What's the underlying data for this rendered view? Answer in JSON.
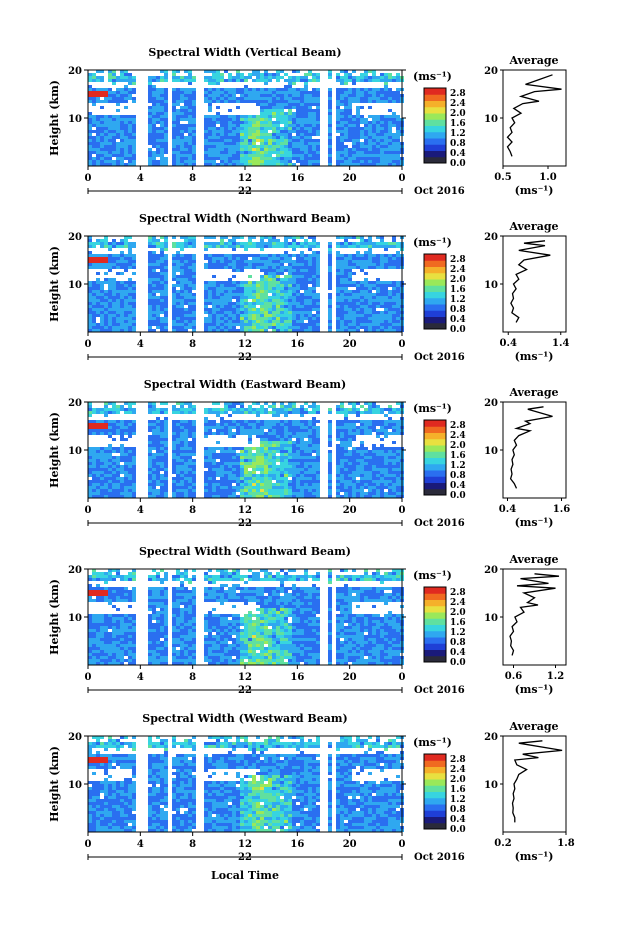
{
  "chart_data": [
    {
      "type": "heatmap",
      "title": "Spectral Width (Vertical Beam)",
      "ylabel": "Height (km)",
      "x_ticks": [
        "0",
        "4",
        "8",
        "12",
        "16",
        "20",
        "0"
      ],
      "ylim": [
        0,
        20
      ],
      "y_ticks": [
        "20",
        "10"
      ],
      "date_label": "22",
      "date_suffix": "Oct 2016",
      "colorbar": {
        "unit": "(ms⁻¹)",
        "ticks": [
          "2.8",
          "2.4",
          "2.0",
          "1.6",
          "1.2",
          "0.8",
          "0.4",
          "0.0"
        ]
      },
      "average": {
        "title": "Average",
        "xlabel": "(ms⁻¹)",
        "x_ticks": [
          "0.5",
          "1.0"
        ],
        "xlim": [
          0.5,
          1.2
        ],
        "y_ticks": [
          "20",
          "10"
        ]
      }
    },
    {
      "type": "heatmap",
      "title": "Spectral Width (Northward Beam)",
      "ylabel": "Height (km)",
      "x_ticks": [
        "0",
        "4",
        "8",
        "12",
        "16",
        "20",
        "0"
      ],
      "ylim": [
        0,
        20
      ],
      "y_ticks": [
        "20",
        "10"
      ],
      "date_label": "22",
      "date_suffix": "Oct 2016",
      "colorbar": {
        "unit": "(ms⁻¹)",
        "ticks": [
          "2.8",
          "2.4",
          "2.0",
          "1.6",
          "1.2",
          "0.8",
          "0.4",
          "0.0"
        ]
      },
      "average": {
        "title": "Average",
        "xlabel": "(ms⁻¹)",
        "x_ticks": [
          "0.4",
          "1.4"
        ],
        "xlim": [
          0.3,
          1.5
        ],
        "y_ticks": [
          "20",
          "10"
        ]
      }
    },
    {
      "type": "heatmap",
      "title": "Spectral Width (Eastward Beam)",
      "ylabel": "Height (km)",
      "x_ticks": [
        "0",
        "4",
        "8",
        "12",
        "16",
        "20",
        "0"
      ],
      "ylim": [
        0,
        20
      ],
      "y_ticks": [
        "20",
        "10"
      ],
      "date_label": "22",
      "date_suffix": "Oct 2016",
      "colorbar": {
        "unit": "(ms⁻¹)",
        "ticks": [
          "2.8",
          "2.4",
          "2.0",
          "1.6",
          "1.2",
          "0.8",
          "0.4",
          "0.0"
        ]
      },
      "average": {
        "title": "Average",
        "xlabel": "(ms⁻¹)",
        "x_ticks": [
          "0.4",
          "1.6"
        ],
        "xlim": [
          0.3,
          1.7
        ],
        "y_ticks": [
          "20",
          "10"
        ]
      }
    },
    {
      "type": "heatmap",
      "title": "Spectral Width (Southward Beam)",
      "ylabel": "Height (km)",
      "x_ticks": [
        "0",
        "4",
        "8",
        "12",
        "16",
        "20",
        "0"
      ],
      "ylim": [
        0,
        20
      ],
      "y_ticks": [
        "20",
        "10"
      ],
      "date_label": "22",
      "date_suffix": "Oct 2016",
      "colorbar": {
        "unit": "(ms⁻¹)",
        "ticks": [
          "2.8",
          "2.4",
          "2.0",
          "1.6",
          "1.2",
          "0.8",
          "0.4",
          "0.0"
        ]
      },
      "average": {
        "title": "Average",
        "xlabel": "(ms⁻¹)",
        "x_ticks": [
          "0.6",
          "1.2"
        ],
        "xlim": [
          0.45,
          1.35
        ],
        "y_ticks": [
          "20",
          "10"
        ]
      }
    },
    {
      "type": "heatmap",
      "title": "Spectral Width (Westward Beam)",
      "ylabel": "Height (km)",
      "x_ticks": [
        "0",
        "4",
        "8",
        "12",
        "16",
        "20",
        "0"
      ],
      "ylim": [
        0,
        20
      ],
      "y_ticks": [
        "20",
        "10"
      ],
      "date_label": "22",
      "date_suffix": "Oct 2016",
      "colorbar": {
        "unit": "(ms⁻¹)",
        "ticks": [
          "2.8",
          "2.4",
          "2.0",
          "1.6",
          "1.2",
          "0.8",
          "0.4",
          "0.0"
        ]
      },
      "average": {
        "title": "Average",
        "xlabel": "(ms⁻¹)",
        "x_ticks": [
          "0.2",
          "1.8"
        ],
        "xlim": [
          0.2,
          1.8
        ],
        "y_ticks": [
          "20",
          "10"
        ]
      }
    }
  ],
  "xlabel": "Local Time",
  "palette": [
    "#1a1a7a",
    "#1f3fd6",
    "#2a6ff0",
    "#2fa8f0",
    "#37d4e0",
    "#5fe0a0",
    "#9ae85a",
    "#e8e040",
    "#f5b02a",
    "#f06a20",
    "#e02a20"
  ],
  "gap_hours": [
    3.7,
    4.1,
    6.1,
    8.4,
    17.9,
    18.7
  ],
  "average_profiles": [
    [
      [
        1.05,
        19
      ],
      [
        0.9,
        18
      ],
      [
        0.75,
        17
      ],
      [
        1.15,
        16
      ],
      [
        0.85,
        15.5
      ],
      [
        0.7,
        14.5
      ],
      [
        0.9,
        13.5
      ],
      [
        0.72,
        13
      ],
      [
        0.62,
        12
      ],
      [
        0.7,
        11
      ],
      [
        0.6,
        10
      ],
      [
        0.63,
        9
      ],
      [
        0.58,
        8
      ],
      [
        0.6,
        7
      ],
      [
        0.55,
        6
      ],
      [
        0.6,
        5
      ],
      [
        0.55,
        4
      ],
      [
        0.58,
        3
      ],
      [
        0.6,
        2
      ]
    ],
    [
      [
        1.1,
        19
      ],
      [
        0.7,
        18.5
      ],
      [
        1.1,
        18
      ],
      [
        0.6,
        17
      ],
      [
        1.2,
        16
      ],
      [
        0.7,
        15
      ],
      [
        0.6,
        14
      ],
      [
        0.75,
        13
      ],
      [
        0.55,
        12
      ],
      [
        0.6,
        11
      ],
      [
        0.5,
        10
      ],
      [
        0.55,
        9
      ],
      [
        0.48,
        8
      ],
      [
        0.5,
        7
      ],
      [
        0.45,
        6
      ],
      [
        0.5,
        5
      ],
      [
        0.47,
        4
      ],
      [
        0.6,
        3
      ],
      [
        0.55,
        2
      ]
    ],
    [
      [
        1.2,
        19
      ],
      [
        0.85,
        18.5
      ],
      [
        1.4,
        17
      ],
      [
        0.8,
        16
      ],
      [
        0.9,
        15.5
      ],
      [
        0.6,
        14.5
      ],
      [
        0.9,
        14
      ],
      [
        0.65,
        13
      ],
      [
        0.55,
        12
      ],
      [
        0.6,
        11
      ],
      [
        0.52,
        10
      ],
      [
        0.55,
        9
      ],
      [
        0.5,
        8
      ],
      [
        0.52,
        7
      ],
      [
        0.48,
        6
      ],
      [
        0.5,
        5
      ],
      [
        0.47,
        4
      ],
      [
        0.55,
        3
      ],
      [
        0.6,
        2
      ]
    ],
    [
      [
        0.9,
        19
      ],
      [
        1.25,
        18.5
      ],
      [
        0.7,
        18
      ],
      [
        1.1,
        17
      ],
      [
        0.65,
        16.5
      ],
      [
        1.2,
        16
      ],
      [
        0.75,
        15
      ],
      [
        0.9,
        14
      ],
      [
        0.8,
        13
      ],
      [
        0.95,
        12.5
      ],
      [
        0.7,
        12
      ],
      [
        0.75,
        11
      ],
      [
        0.62,
        10
      ],
      [
        0.65,
        9
      ],
      [
        0.58,
        8
      ],
      [
        0.6,
        7
      ],
      [
        0.55,
        6
      ],
      [
        0.57,
        5
      ],
      [
        0.56,
        4
      ],
      [
        0.6,
        3
      ],
      [
        0.58,
        2
      ]
    ],
    [
      [
        1.2,
        19
      ],
      [
        0.6,
        18.5
      ],
      [
        1.7,
        17
      ],
      [
        0.7,
        16.2
      ],
      [
        1.1,
        15.5
      ],
      [
        0.5,
        15
      ],
      [
        0.55,
        14
      ],
      [
        0.8,
        13
      ],
      [
        0.6,
        12
      ],
      [
        0.55,
        11
      ],
      [
        0.48,
        10
      ],
      [
        0.5,
        9
      ],
      [
        0.46,
        8
      ],
      [
        0.48,
        7
      ],
      [
        0.44,
        6
      ],
      [
        0.46,
        5
      ],
      [
        0.45,
        4
      ],
      [
        0.5,
        3
      ],
      [
        0.5,
        2
      ]
    ]
  ]
}
